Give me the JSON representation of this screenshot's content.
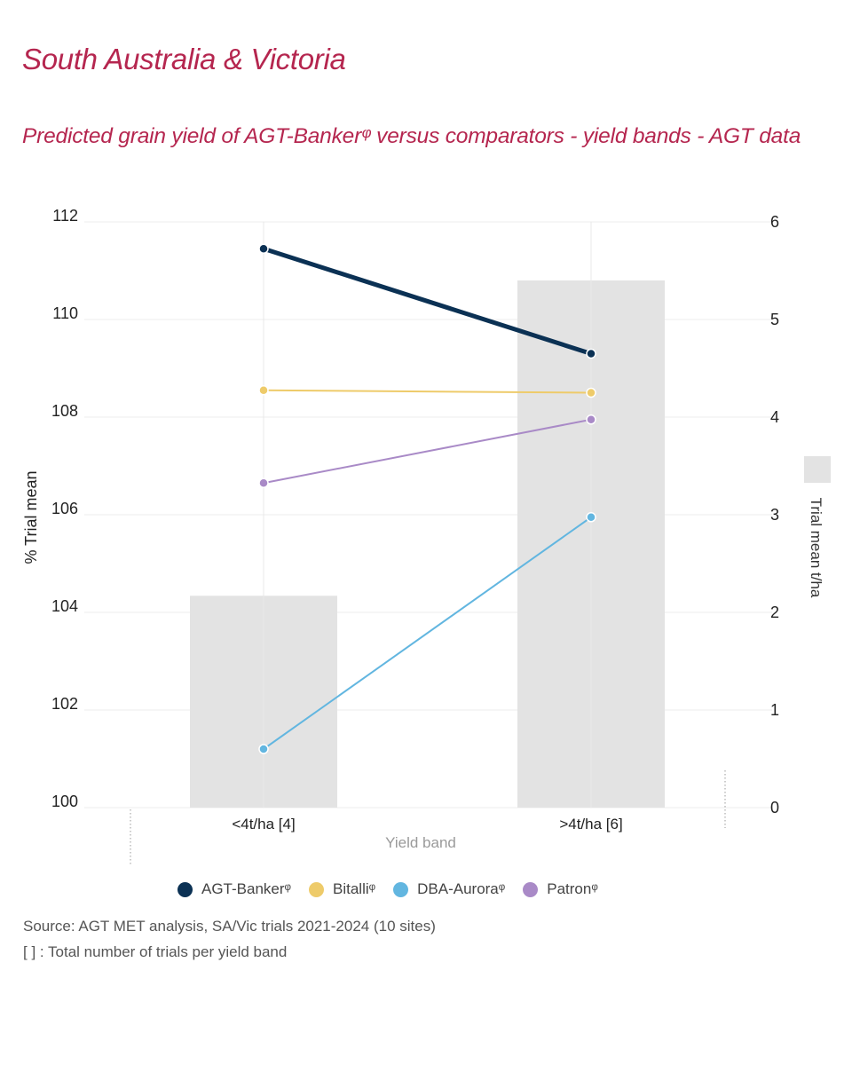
{
  "region_title": "South Australia & Victoria",
  "chart_data": {
    "type": "line",
    "title": "Predicted grain yield of AGT-Bankerᵠ versus comparators - yield bands - AGT data",
    "categories": [
      "<4t/ha [4]",
      ">4t/ha [6]"
    ],
    "xlabel": "Yield band",
    "ylabel": "% Trial mean",
    "y2label": "Trial mean t/ha",
    "ylim": [
      100,
      112
    ],
    "yticks": [
      100,
      102,
      104,
      106,
      108,
      110,
      112
    ],
    "y2lim": [
      0,
      6
    ],
    "y2ticks": [
      0,
      1,
      2,
      3,
      4,
      5,
      6
    ],
    "bars": {
      "name": "Trial mean t/ha",
      "axis": "right",
      "values": [
        2.17,
        5.4
      ],
      "color": "#e3e3e3"
    },
    "series": [
      {
        "name": "AGT-Bankerᵠ",
        "values": [
          111.45,
          109.3
        ],
        "color": "#0b3154",
        "width": 5
      },
      {
        "name": "Bitalliᵠ",
        "values": [
          108.55,
          108.5
        ],
        "color": "#eecb6a",
        "width": 2
      },
      {
        "name": "DBA-Auroraᵠ",
        "values": [
          101.2,
          105.95
        ],
        "color": "#62b6e0",
        "width": 2
      },
      {
        "name": "Patronᵠ",
        "values": [
          106.65,
          107.95
        ],
        "color": "#a98ac7",
        "width": 2
      }
    ],
    "legend_position": "bottom",
    "grid": true
  },
  "notes": {
    "source": "Source: AGT MET analysis, SA/Vic trials 2021-2024 (10 sites)",
    "trials": "[ ] : Total number of trials per yield band"
  }
}
